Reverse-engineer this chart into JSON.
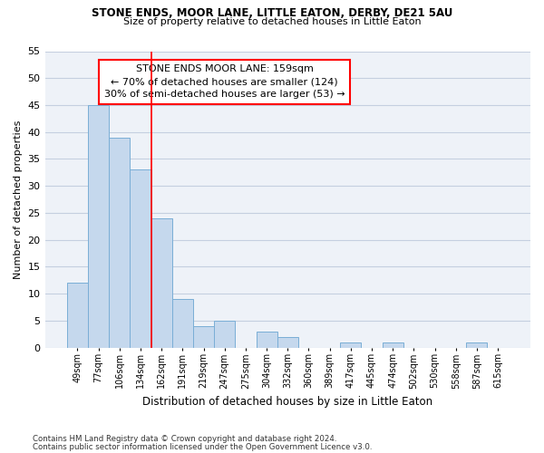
{
  "title": "STONE ENDS, MOOR LANE, LITTLE EATON, DERBY, DE21 5AU",
  "subtitle": "Size of property relative to detached houses in Little Eaton",
  "xlabel": "Distribution of detached houses by size in Little Eaton",
  "ylabel": "Number of detached properties",
  "categories": [
    "49sqm",
    "77sqm",
    "106sqm",
    "134sqm",
    "162sqm",
    "191sqm",
    "219sqm",
    "247sqm",
    "275sqm",
    "304sqm",
    "332sqm",
    "360sqm",
    "389sqm",
    "417sqm",
    "445sqm",
    "474sqm",
    "502sqm",
    "530sqm",
    "558sqm",
    "587sqm",
    "615sqm"
  ],
  "values": [
    12,
    45,
    39,
    33,
    24,
    9,
    4,
    5,
    0,
    3,
    2,
    0,
    0,
    1,
    0,
    1,
    0,
    0,
    0,
    1,
    0
  ],
  "bar_color": "#c5d8ed",
  "bar_edge_color": "#7aaed6",
  "vline_color": "red",
  "annotation_line1": "STONE ENDS MOOR LANE: 159sqm",
  "annotation_line2": "← 70% of detached houses are smaller (124)",
  "annotation_line3": "30% of semi-detached houses are larger (53) →",
  "ylim": [
    0,
    55
  ],
  "yticks": [
    0,
    5,
    10,
    15,
    20,
    25,
    30,
    35,
    40,
    45,
    50,
    55
  ],
  "footnote1": "Contains HM Land Registry data © Crown copyright and database right 2024.",
  "footnote2": "Contains public sector information licensed under the Open Government Licence v3.0.",
  "bg_color": "#eef2f8",
  "grid_color": "#c5cfe0"
}
